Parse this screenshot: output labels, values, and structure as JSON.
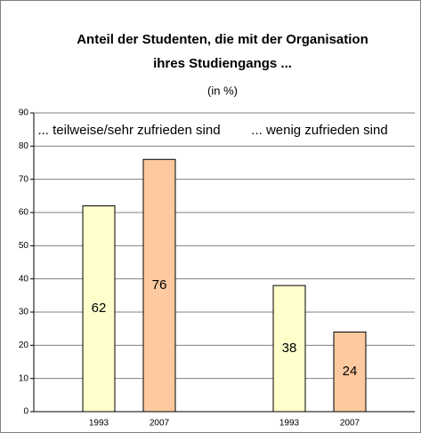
{
  "chart_data": {
    "type": "bar",
    "title": [
      "Anteil der Studenten, die mit der Organisation",
      "ihres Studiengangs ..."
    ],
    "subtitle": "(in %)",
    "categories": [
      "... teilweise/sehr zufrieden sind",
      "... wenig zufrieden sind"
    ],
    "series": [
      {
        "name": "1993",
        "color": "#ffffcc",
        "values": [
          62,
          38
        ]
      },
      {
        "name": "2007",
        "color": "#fcc9a0",
        "values": [
          76,
          24
        ]
      }
    ],
    "ylim": [
      0,
      90
    ],
    "yticks": [
      0,
      10,
      20,
      30,
      40,
      50,
      60,
      70,
      80,
      90
    ],
    "grid": true
  }
}
